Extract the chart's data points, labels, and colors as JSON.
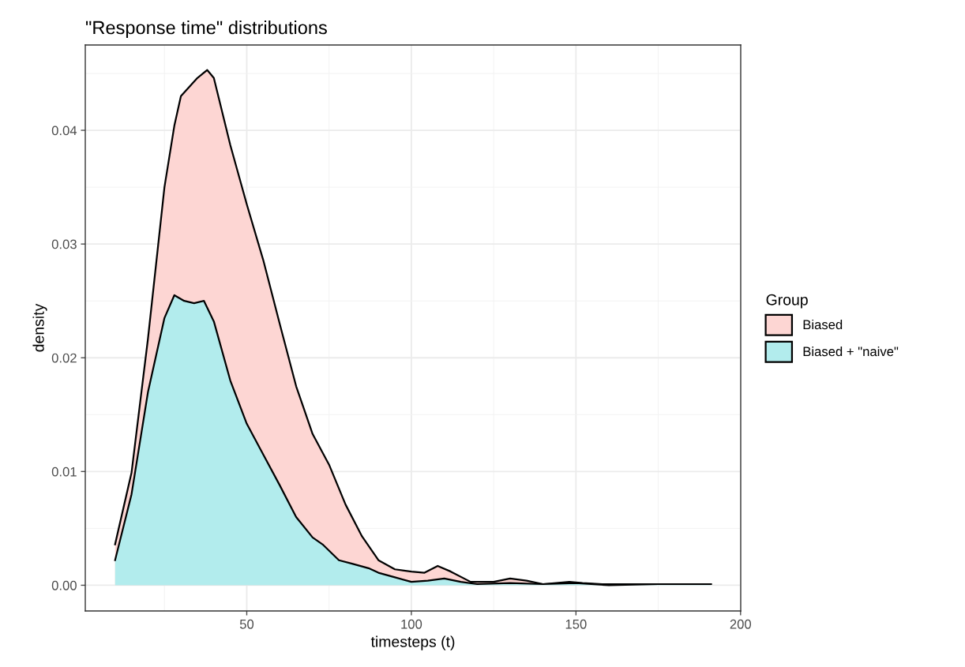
{
  "chart_data": {
    "type": "area",
    "title": "\"Response time\" distributions",
    "xlabel": "timesteps (t)",
    "ylabel": "density",
    "legend_title": "Group",
    "series": [
      {
        "name": "Biased",
        "color": "#fdd6d3",
        "x": [
          10,
          15,
          20,
          25,
          28,
          30,
          35,
          38,
          40,
          45,
          50,
          55,
          60,
          65,
          70,
          75,
          80,
          85,
          90,
          95,
          100,
          104,
          108,
          112,
          118,
          125,
          130,
          135,
          140,
          148,
          152,
          158,
          170,
          180,
          191
        ],
        "values": [
          0.0036,
          0.0099,
          0.0217,
          0.035,
          0.0404,
          0.043,
          0.0446,
          0.0453,
          0.0446,
          0.0387,
          0.0335,
          0.0286,
          0.023,
          0.0175,
          0.0133,
          0.0106,
          0.0071,
          0.0043,
          0.0022,
          0.0014,
          0.0012,
          0.0011,
          0.0017,
          0.0012,
          0.0003,
          0.0003,
          0.0006,
          0.0004,
          0.0001,
          0.0003,
          0.0002,
          0.0001,
          0.0001,
          0.0001,
          0.0001
        ]
      },
      {
        "name": "Biased + \"naive\"",
        "color": "#b2eced",
        "x": [
          10,
          15,
          20,
          25,
          28,
          31,
          34,
          37,
          40,
          45,
          50,
          55,
          60,
          65,
          70,
          73,
          78,
          82,
          87,
          90,
          95,
          100,
          105,
          110,
          115,
          120,
          130,
          140,
          150,
          160,
          175,
          191
        ],
        "values": [
          0.0022,
          0.008,
          0.017,
          0.0235,
          0.0255,
          0.025,
          0.0248,
          0.025,
          0.0232,
          0.018,
          0.0142,
          0.0115,
          0.0088,
          0.006,
          0.0042,
          0.0036,
          0.0022,
          0.0019,
          0.0015,
          0.0011,
          0.0007,
          0.0003,
          0.0004,
          0.0006,
          0.0003,
          0.0001,
          0.0002,
          0.0001,
          0.0002,
          0.0,
          0.0001,
          0.0001
        ]
      }
    ],
    "xlim": [
      0.95,
      200.05
    ],
    "xticks": [
      50,
      100,
      150,
      200
    ],
    "ylim": [
      -0.00226,
      0.0475
    ],
    "yticks": [
      {
        "value": 0,
        "label": "0.00"
      },
      {
        "value": 0.01,
        "label": "0.01"
      },
      {
        "value": 0.02,
        "label": "0.02"
      },
      {
        "value": 0.03,
        "label": "0.03"
      },
      {
        "value": 0.04,
        "label": "0.04"
      }
    ],
    "grid": true,
    "legend": "right",
    "line_style": "solid"
  }
}
